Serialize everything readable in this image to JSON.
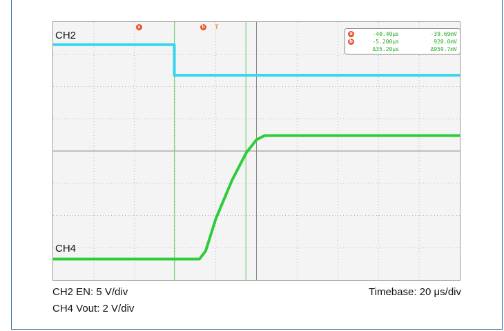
{
  "channels": {
    "ch2_label": "CH2",
    "ch4_label": "CH4"
  },
  "captions": {
    "ch2_scale": "CH2 EN: 5 V/div",
    "ch4_scale": "CH4 Vout: 2 V/div",
    "timebase": "Timebase: 20 μs/div"
  },
  "cursors": {
    "a_marker": "a",
    "b_marker": "b",
    "trigger_marker": "T",
    "a_time": "-40.40μs",
    "a_value": "-39.69mV",
    "b_time": "-5.200μs",
    "b_value": "920.0mV",
    "delta_time": "Δ35.20μs",
    "delta_value": "Δ959.7mV"
  },
  "colors": {
    "ch2": "#35d6ec",
    "ch4": "#2ecc3a",
    "cursor": "#7fd07f",
    "grid_dot": "#b8b8b8",
    "marker": "#e8502a",
    "trigger": "#e8a020"
  },
  "chart_data": {
    "type": "line",
    "title": "",
    "xlabel": "",
    "ylabel": "",
    "x_unit": "μs",
    "y_unit": "div",
    "xlim": [
      -100,
      100
    ],
    "ylim": [
      -4,
      4
    ],
    "grid": true,
    "cursor_a_x": -40.4,
    "cursor_b_x": -5.2,
    "series": [
      {
        "name": "CH2",
        "x": [
          -100,
          -40.4,
          -40.4,
          100
        ],
        "y": [
          3.3,
          3.3,
          2.35,
          2.35
        ]
      },
      {
        "name": "CH4",
        "x": [
          -100,
          -28,
          -25,
          -20,
          -12,
          -5,
          0,
          4,
          100
        ],
        "y": [
          -3.35,
          -3.35,
          -3.1,
          -2.1,
          -0.9,
          -0.05,
          0.35,
          0.48,
          0.48
        ]
      }
    ]
  }
}
